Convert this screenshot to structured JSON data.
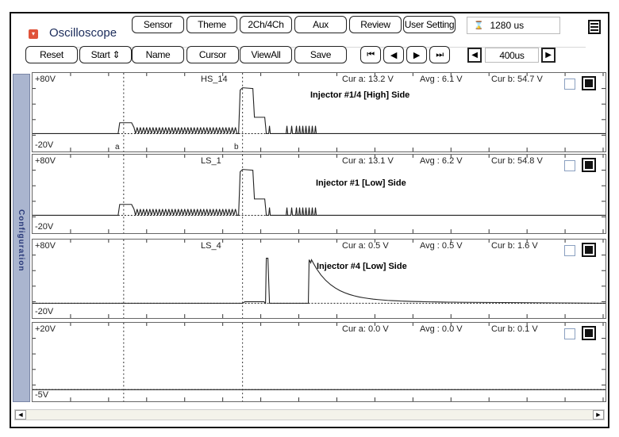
{
  "app": {
    "title": "Oscilloscope",
    "menu_icon": "menu-icon",
    "logo_icon": "dropdown-icon"
  },
  "toolbar1": [
    "Sensor",
    "Theme",
    "2Ch/4Ch",
    "Aux",
    "Review",
    "User Setting"
  ],
  "timebase": "1280 us",
  "toolbar2": [
    "Reset",
    "Start ⇕",
    "Name",
    "Cursor",
    "ViewAll",
    "Save"
  ],
  "nav_icons": [
    "first-icon",
    "prev-icon",
    "next-icon",
    "last-icon"
  ],
  "time_div": "400us",
  "sidebar_label": "Configuration",
  "channels": [
    {
      "name": "HS_14",
      "top": "+80V",
      "bottom": "-20V",
      "cur_a": "Cur a: 13.2 V",
      "avg": "Avg  : 6.1 V",
      "cur_b": "Cur b: 54.7 V",
      "annotation": "Injector #1/4 [High] Side",
      "cursor_a": "a",
      "cursor_b": "b"
    },
    {
      "name": "LS_1",
      "top": "+80V",
      "bottom": "-20V",
      "cur_a": "Cur a: 13.1 V",
      "avg": "Avg  : 6.2 V",
      "cur_b": "Cur b: 54.8 V",
      "annotation": "Injector #1 [Low] Side"
    },
    {
      "name": "LS_4",
      "top": "+80V",
      "bottom": "-20V",
      "cur_a": "Cur a: 0.5 V",
      "avg": "Avg  : 0.5 V",
      "cur_b": "Cur b: 1.6 V",
      "annotation": "Injector #4 [Low] Side"
    },
    {
      "name": "",
      "top": "+20V",
      "bottom": "-5V",
      "cur_a": "Cur a: 0.0 V",
      "avg": "Avg  : 0.0 V",
      "cur_b": "Cur b: 0.1 V",
      "annotation": ""
    }
  ]
}
